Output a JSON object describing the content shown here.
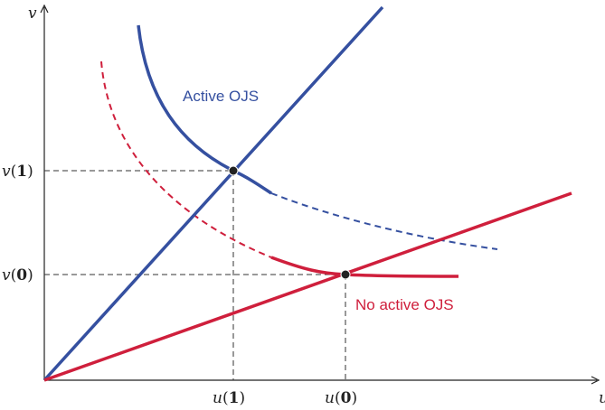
{
  "axes": {
    "x_label": "u",
    "y_label": "v"
  },
  "ticks": {
    "x": [
      {
        "var": "u",
        "arg": "1"
      },
      {
        "var": "u",
        "arg": "0"
      }
    ],
    "y": [
      {
        "var": "v",
        "arg": "1"
      },
      {
        "var": "v",
        "arg": "0"
      }
    ]
  },
  "annotations": {
    "active": "Active OJS",
    "no_active": "No active OJS"
  },
  "colors": {
    "blue": "#3550a0",
    "red": "#cf1f3c",
    "axis": "#222222",
    "guide": "#333333"
  }
}
